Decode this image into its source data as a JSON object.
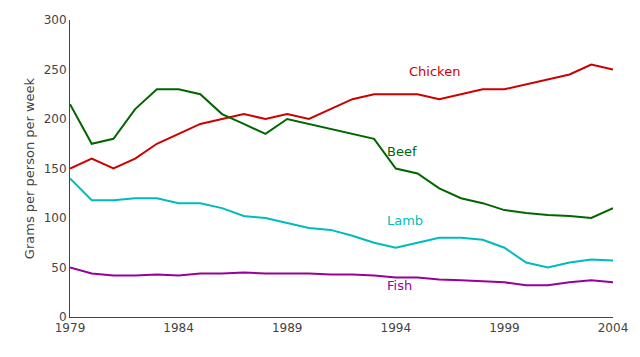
{
  "chart_data": {
    "type": "line",
    "ylabel": "Grams per person per week",
    "x": [
      1979,
      1980,
      1981,
      1982,
      1983,
      1984,
      1985,
      1986,
      1987,
      1988,
      1989,
      1990,
      1991,
      1992,
      1993,
      1994,
      1995,
      1996,
      1997,
      1998,
      1999,
      2000,
      2001,
      2002,
      2003,
      2004
    ],
    "series": [
      {
        "color": "#cc0000",
        "values": [
          150,
          160,
          150,
          160,
          175,
          185,
          195,
          200,
          205,
          200,
          205,
          200,
          210,
          220,
          225,
          225,
          225,
          220,
          225,
          230,
          230,
          235,
          240,
          245,
          255,
          250
        ]
      },
      {
        "color": "#006600",
        "values": [
          215,
          175,
          180,
          210,
          230,
          230,
          225,
          205,
          195,
          185,
          200,
          195,
          190,
          185,
          180,
          150,
          145,
          130,
          120,
          115,
          108,
          105,
          103,
          102,
          100,
          110
        ]
      },
      {
        "color": "#00bbbb",
        "values": [
          140,
          118,
          118,
          120,
          120,
          115,
          115,
          110,
          102,
          100,
          95,
          90,
          88,
          82,
          75,
          70,
          75,
          80,
          80,
          78,
          70,
          55,
          50,
          55,
          58,
          57
        ]
      },
      {
        "color": "#990099",
        "values": [
          50,
          44,
          42,
          42,
          43,
          42,
          44,
          44,
          45,
          44,
          44,
          44,
          43,
          43,
          42,
          40,
          40,
          38,
          37,
          36,
          35,
          32,
          32,
          35,
          37,
          35
        ]
      }
    ],
    "annotations": [
      {
        "text": "Chicken",
        "x": 1994.5,
        "y": 238,
        "color": "#cc0000"
      },
      {
        "text": "Beef",
        "x": 1993.5,
        "y": 158,
        "color": "#006600"
      },
      {
        "text": "Lamb",
        "x": 1993.5,
        "y": 88,
        "color": "#00bbbb"
      },
      {
        "text": "Fish",
        "x": 1993.5,
        "y": 22,
        "color": "#990099"
      }
    ],
    "xlim": [
      1979,
      2004
    ],
    "xticks": [
      1979,
      1984,
      1989,
      1994,
      1999,
      2004
    ],
    "ylim": [
      0,
      300
    ],
    "yticks": [
      0,
      50,
      100,
      150,
      200,
      250,
      300
    ],
    "grid": false
  }
}
